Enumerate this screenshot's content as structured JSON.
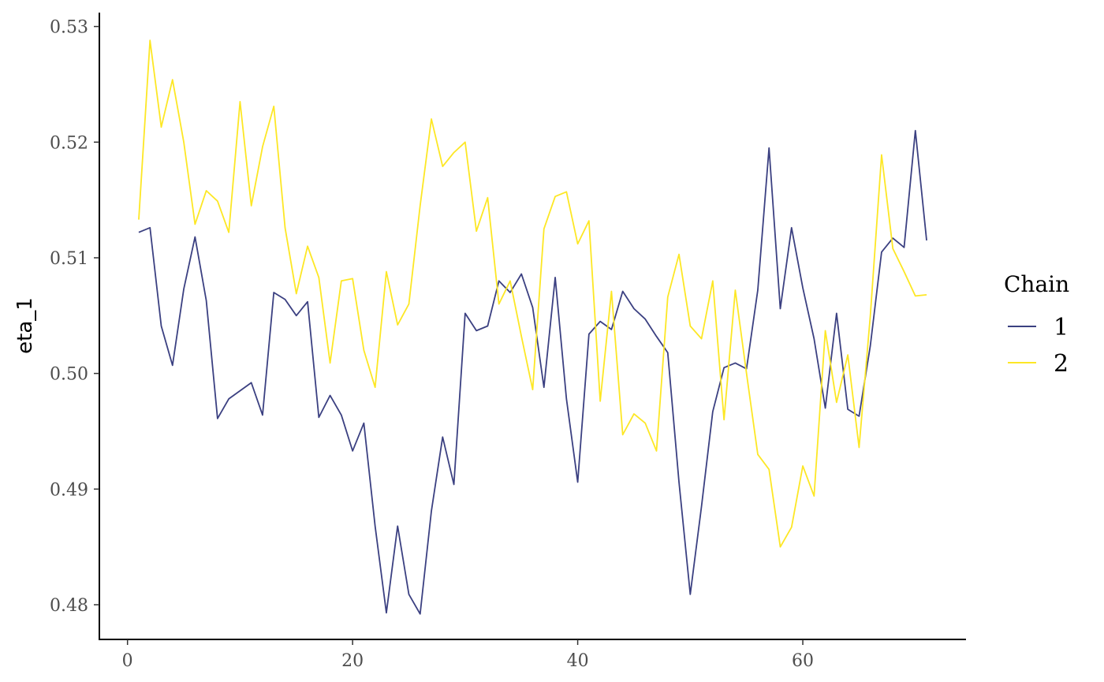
{
  "chart_data": {
    "type": "line",
    "title": "",
    "xlabel": "",
    "ylabel": "eta_1",
    "xlim": [
      -2.5,
      74.5
    ],
    "ylim": [
      0.477,
      0.5312
    ],
    "x_ticks": [
      0,
      20,
      40,
      60
    ],
    "x_tick_labels": [
      "0",
      "20",
      "40",
      "60"
    ],
    "y_ticks": [
      0.48,
      0.49,
      0.5,
      0.51,
      0.52,
      0.53
    ],
    "y_tick_labels": [
      "0.48",
      "0.49",
      "0.50",
      "0.51",
      "0.52",
      "0.53"
    ],
    "grid": false,
    "legend": {
      "title": "Chain",
      "position": "right"
    },
    "series": [
      {
        "name": "1",
        "color": "#3b4081",
        "x": [
          1,
          2,
          3,
          4,
          5,
          6,
          7,
          8,
          9,
          10,
          11,
          12,
          13,
          14,
          15,
          16,
          17,
          18,
          19,
          20,
          21,
          22,
          23,
          24,
          25,
          26,
          27,
          28,
          29,
          30,
          31,
          32,
          33,
          34,
          35,
          36,
          37,
          38,
          39,
          40,
          41,
          42,
          43,
          44,
          45,
          46,
          47,
          48,
          49,
          50,
          51,
          52,
          53,
          54,
          55,
          56,
          57,
          58,
          59,
          60,
          61,
          62,
          63,
          64,
          65,
          66,
          67,
          68,
          69,
          70,
          71
        ],
        "values": [
          0.5122,
          0.5126,
          0.5041,
          0.5007,
          0.5073,
          0.5118,
          0.5063,
          0.4961,
          0.4978,
          0.4985,
          0.4992,
          0.4964,
          0.507,
          0.5064,
          0.505,
          0.5062,
          0.4962,
          0.4981,
          0.4964,
          0.4933,
          0.4957,
          0.4868,
          0.4793,
          0.4868,
          0.4809,
          0.4792,
          0.4881,
          0.4945,
          0.4904,
          0.5052,
          0.5037,
          0.5041,
          0.508,
          0.507,
          0.5086,
          0.5057,
          0.4988,
          0.5083,
          0.4978,
          0.4906,
          0.5034,
          0.5045,
          0.5038,
          0.5071,
          0.5056,
          0.5047,
          0.5032,
          0.5018,
          0.4906,
          0.4809,
          0.4885,
          0.4967,
          0.5005,
          0.5009,
          0.5004,
          0.5072,
          0.5195,
          0.5056,
          0.5126,
          0.5074,
          0.503,
          0.497,
          0.5052,
          0.4969,
          0.4963,
          0.5024,
          0.5105,
          0.5117,
          0.5109,
          0.521,
          0.5115
        ]
      },
      {
        "name": "2",
        "color": "#fde725",
        "x": [
          1,
          2,
          3,
          4,
          5,
          6,
          7,
          8,
          9,
          10,
          11,
          12,
          13,
          14,
          15,
          16,
          17,
          18,
          19,
          20,
          21,
          22,
          23,
          24,
          25,
          26,
          27,
          28,
          29,
          30,
          31,
          32,
          33,
          34,
          35,
          36,
          37,
          38,
          39,
          40,
          41,
          42,
          43,
          44,
          45,
          46,
          47,
          48,
          49,
          50,
          51,
          52,
          53,
          54,
          55,
          56,
          57,
          58,
          59,
          60,
          61,
          62,
          63,
          64,
          65,
          66,
          67,
          68,
          69,
          70,
          71
        ],
        "values": [
          0.5133,
          0.5288,
          0.5213,
          0.5254,
          0.52,
          0.5129,
          0.5158,
          0.5149,
          0.5122,
          0.5235,
          0.5145,
          0.5196,
          0.5231,
          0.5126,
          0.5069,
          0.511,
          0.5083,
          0.5009,
          0.508,
          0.5082,
          0.502,
          0.4988,
          0.5088,
          0.5042,
          0.506,
          0.5145,
          0.522,
          0.5179,
          0.5191,
          0.52,
          0.5123,
          0.5152,
          0.506,
          0.508,
          0.5032,
          0.4986,
          0.5125,
          0.5153,
          0.5157,
          0.5112,
          0.5132,
          0.4976,
          0.5071,
          0.4947,
          0.4965,
          0.4957,
          0.4933,
          0.5066,
          0.5103,
          0.5041,
          0.503,
          0.508,
          0.496,
          0.5072,
          0.5,
          0.493,
          0.4917,
          0.485,
          0.4867,
          0.492,
          0.4894,
          0.5037,
          0.4975,
          0.5016,
          0.4936,
          0.505,
          0.5189,
          0.5108,
          0.5088,
          0.5067,
          0.5068
        ]
      }
    ]
  }
}
